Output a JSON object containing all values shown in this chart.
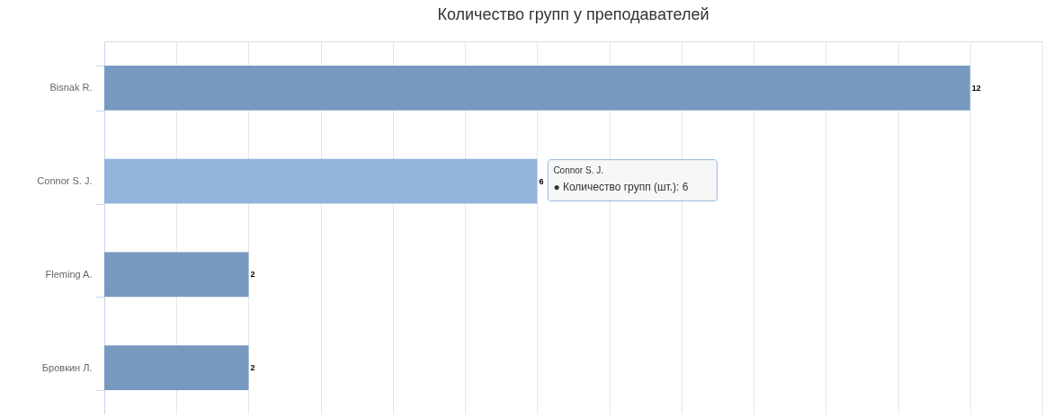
{
  "chart_data": {
    "type": "bar",
    "orientation": "horizontal",
    "title": "Количество групп у преподавателей",
    "categories": [
      "Bisnak R.",
      "Connor S. J.",
      "Fleming A.",
      "Бровкин Л."
    ],
    "values": [
      12,
      6,
      2,
      2
    ],
    "colors": [
      "#7799c0",
      "#92b3da",
      "#7799c0",
      "#7799c0"
    ],
    "xlim": [
      0,
      13
    ],
    "xticks": [
      {
        "value": 0,
        "label": null
      },
      {
        "value": 1,
        "label": null
      },
      {
        "value": 2,
        "label": null
      },
      {
        "value": 3,
        "label": null
      },
      {
        "value": 4,
        "label": null
      },
      {
        "value": 5,
        "label": null
      },
      {
        "value": 6,
        "label": null
      },
      {
        "value": 7,
        "label": null
      },
      {
        "value": 8,
        "label": null
      },
      {
        "value": 9,
        "label": null
      },
      {
        "value": 10,
        "label": null
      },
      {
        "value": 11,
        "label": null
      },
      {
        "value": 12,
        "label": null
      },
      {
        "value": 13,
        "label": null
      }
    ],
    "tick_labels": "y",
    "grid": "x",
    "data_labels": true,
    "annotations": [
      {
        "text": "Connor S. J.",
        "x": 6,
        "y": "Connor S. J."
      },
      {
        "text": "● Количество групп (шт.): 6",
        "x": 6,
        "y": "Connor S. J."
      }
    ]
  }
}
